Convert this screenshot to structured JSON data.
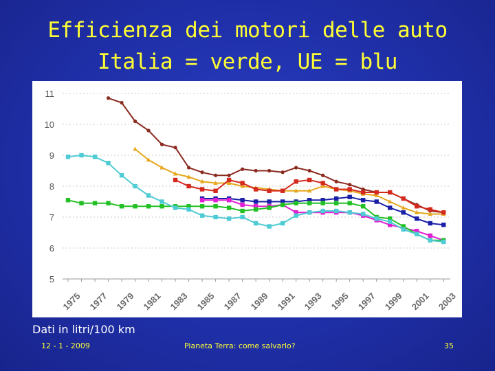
{
  "slide": {
    "title_line1": "Efficienza dei motori delle auto",
    "title_line2": "Italia = verde, UE = blu",
    "note": "Dati in litri/100 km",
    "footer_date": "12 - 1 - 2009",
    "footer_center": "Pianeta Terra: come salvarlo?",
    "footer_page": "35"
  },
  "chart_data": {
    "type": "line",
    "title": "",
    "xlabel": "",
    "ylabel": "",
    "xlim": [
      1975,
      2003.5
    ],
    "ylim": [
      5,
      11
    ],
    "yticks": [
      5,
      6,
      7,
      8,
      9,
      10,
      11
    ],
    "xticks": [
      1975,
      1977,
      1979,
      1981,
      1983,
      1985,
      1987,
      1989,
      1991,
      1993,
      1995,
      1997,
      1999,
      2001,
      2003
    ],
    "grid": "horizontal-dotted",
    "series": [
      {
        "color": "#8b2a1f",
        "marker": "circle",
        "x": [
          1978,
          1979,
          1980,
          1981,
          1982,
          1983,
          1984,
          1985,
          1986,
          1987,
          1988,
          1989,
          1990,
          1991,
          1992,
          1993,
          1994,
          1995,
          1996,
          1997,
          1998,
          1999,
          2000,
          2001,
          2002,
          2003
        ],
        "y": [
          10.85,
          10.7,
          10.1,
          9.8,
          9.35,
          9.25,
          8.6,
          8.45,
          8.35,
          8.35,
          8.55,
          8.5,
          8.5,
          8.45,
          8.6,
          8.5,
          8.35,
          8.15,
          8.05,
          7.9,
          7.8,
          7.8,
          7.6,
          7.4,
          7.2,
          7.15
        ]
      },
      {
        "color": "#e6a71c",
        "marker": "triangle",
        "x": [
          1980,
          1981,
          1982,
          1983,
          1984,
          1985,
          1986,
          1987,
          1988,
          1989,
          1990,
          1991,
          1992,
          1993,
          1994,
          1995,
          1996,
          1997,
          1998,
          1999,
          2000,
          2001,
          2002,
          2003
        ],
        "y": [
          9.2,
          8.85,
          8.6,
          8.4,
          8.3,
          8.15,
          8.1,
          8.1,
          8.0,
          7.95,
          7.9,
          7.85,
          7.85,
          7.85,
          8.0,
          7.9,
          7.85,
          7.75,
          7.7,
          7.5,
          7.3,
          7.15,
          7.1,
          7.1
        ]
      },
      {
        "color": "#d42a1e",
        "marker": "square",
        "x": [
          1983,
          1984,
          1985,
          1986,
          1987,
          1988,
          1989,
          1990,
          1991,
          1992,
          1993,
          1994,
          1995,
          1996,
          1997,
          1998,
          1999,
          2000,
          2001,
          2002,
          2003
        ],
        "y": [
          8.2,
          8.0,
          7.9,
          7.85,
          8.2,
          8.1,
          7.9,
          7.85,
          7.85,
          8.15,
          8.2,
          8.1,
          7.9,
          7.9,
          7.8,
          7.8,
          7.8,
          7.6,
          7.35,
          7.25,
          7.15
        ]
      },
      {
        "color": "#1a1fa8",
        "marker": "square",
        "x": [
          1985,
          1986,
          1987,
          1988,
          1989,
          1990,
          1991,
          1992,
          1993,
          1994,
          1995,
          1996,
          1997,
          1998,
          1999,
          2000,
          2001,
          2002,
          2003
        ],
        "y": [
          7.6,
          7.6,
          7.6,
          7.55,
          7.5,
          7.5,
          7.5,
          7.5,
          7.55,
          7.55,
          7.6,
          7.65,
          7.55,
          7.5,
          7.3,
          7.15,
          6.95,
          6.8,
          6.75
        ]
      },
      {
        "color": "#e11fd2",
        "marker": "square",
        "x": [
          1985,
          1986,
          1987,
          1988,
          1989,
          1990,
          1991,
          1992,
          1993,
          1994,
          1995,
          1996,
          1997,
          1998,
          1999,
          2000,
          2001,
          2002,
          2003
        ],
        "y": [
          7.55,
          7.55,
          7.55,
          7.4,
          7.35,
          7.35,
          7.4,
          7.15,
          7.15,
          7.15,
          7.15,
          7.15,
          7.05,
          6.9,
          6.75,
          6.65,
          6.55,
          6.4,
          6.25
        ]
      },
      {
        "color": "#22c024",
        "marker": "square",
        "x": [
          1975,
          1976,
          1977,
          1978,
          1979,
          1980,
          1981,
          1982,
          1983,
          1984,
          1985,
          1986,
          1987,
          1988,
          1989,
          1990,
          1991,
          1992,
          1993,
          1994,
          1995,
          1996,
          1997,
          1998,
          1999,
          2000,
          2001,
          2002,
          2003
        ],
        "y": [
          7.55,
          7.45,
          7.45,
          7.45,
          7.35,
          7.35,
          7.35,
          7.35,
          7.35,
          7.35,
          7.35,
          7.35,
          7.3,
          7.2,
          7.25,
          7.3,
          7.4,
          7.45,
          7.45,
          7.45,
          7.45,
          7.45,
          7.35,
          7.0,
          6.95,
          6.7,
          6.45,
          6.25,
          6.25
        ]
      },
      {
        "color": "#4ecbd4",
        "marker": "square",
        "x": [
          1975,
          1976,
          1977,
          1978,
          1979,
          1980,
          1981,
          1982,
          1983,
          1984,
          1985,
          1986,
          1987,
          1988,
          1989,
          1990,
          1991,
          1992,
          1993,
          1994,
          1995,
          1996,
          1997,
          1998,
          1999,
          2000,
          2001,
          2002,
          2003
        ],
        "y": [
          8.95,
          9.0,
          8.95,
          8.75,
          8.35,
          8.0,
          7.7,
          7.5,
          7.3,
          7.25,
          7.05,
          7.0,
          6.95,
          7.0,
          6.8,
          6.7,
          6.8,
          7.05,
          7.15,
          7.2,
          7.2,
          7.15,
          7.1,
          6.95,
          6.85,
          6.6,
          6.45,
          6.25,
          6.2
        ]
      }
    ]
  }
}
